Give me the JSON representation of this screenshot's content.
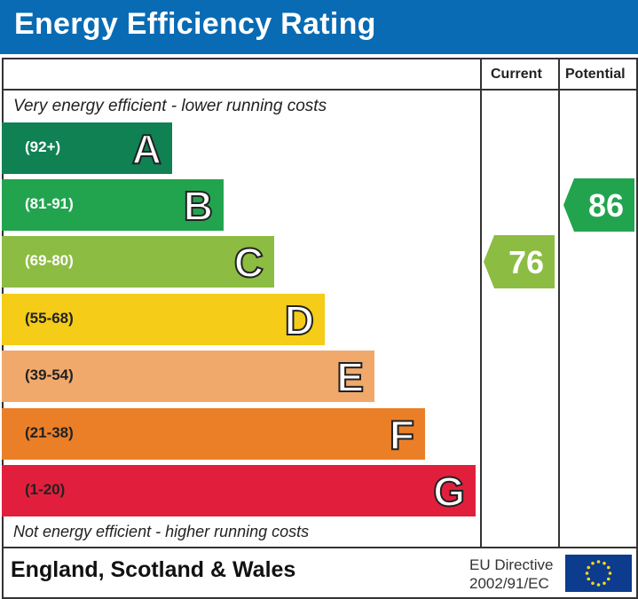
{
  "chart_data": {
    "type": "bar",
    "title": "Energy Efficiency Rating",
    "columns": [
      "Current",
      "Potential"
    ],
    "top_note": "Very energy efficient - lower running costs",
    "bottom_note": "Not energy efficient - higher running costs",
    "bands": [
      {
        "letter": "A",
        "range": "(92+)",
        "color": "#0f8153"
      },
      {
        "letter": "B",
        "range": "(81-91)",
        "color": "#22a44f"
      },
      {
        "letter": "C",
        "range": "(69-80)",
        "color": "#8cbc42"
      },
      {
        "letter": "D",
        "range": "(55-68)",
        "color": "#f5cc17"
      },
      {
        "letter": "E",
        "range": "(39-54)",
        "color": "#f1a96b"
      },
      {
        "letter": "F",
        "range": "(21-38)",
        "color": "#eb7f27"
      },
      {
        "letter": "G",
        "range": "(1-20)",
        "color": "#e11f3c"
      }
    ],
    "current": {
      "value": "76",
      "band": "C",
      "color": "#8cbc42"
    },
    "potential": {
      "value": "86",
      "band": "B",
      "color": "#22a44f"
    }
  },
  "footer": {
    "country": "England, Scotland & Wales",
    "directive_line1": "EU Directive",
    "directive_line2": "2002/91/EC",
    "flag": "eu-flag-icon"
  }
}
